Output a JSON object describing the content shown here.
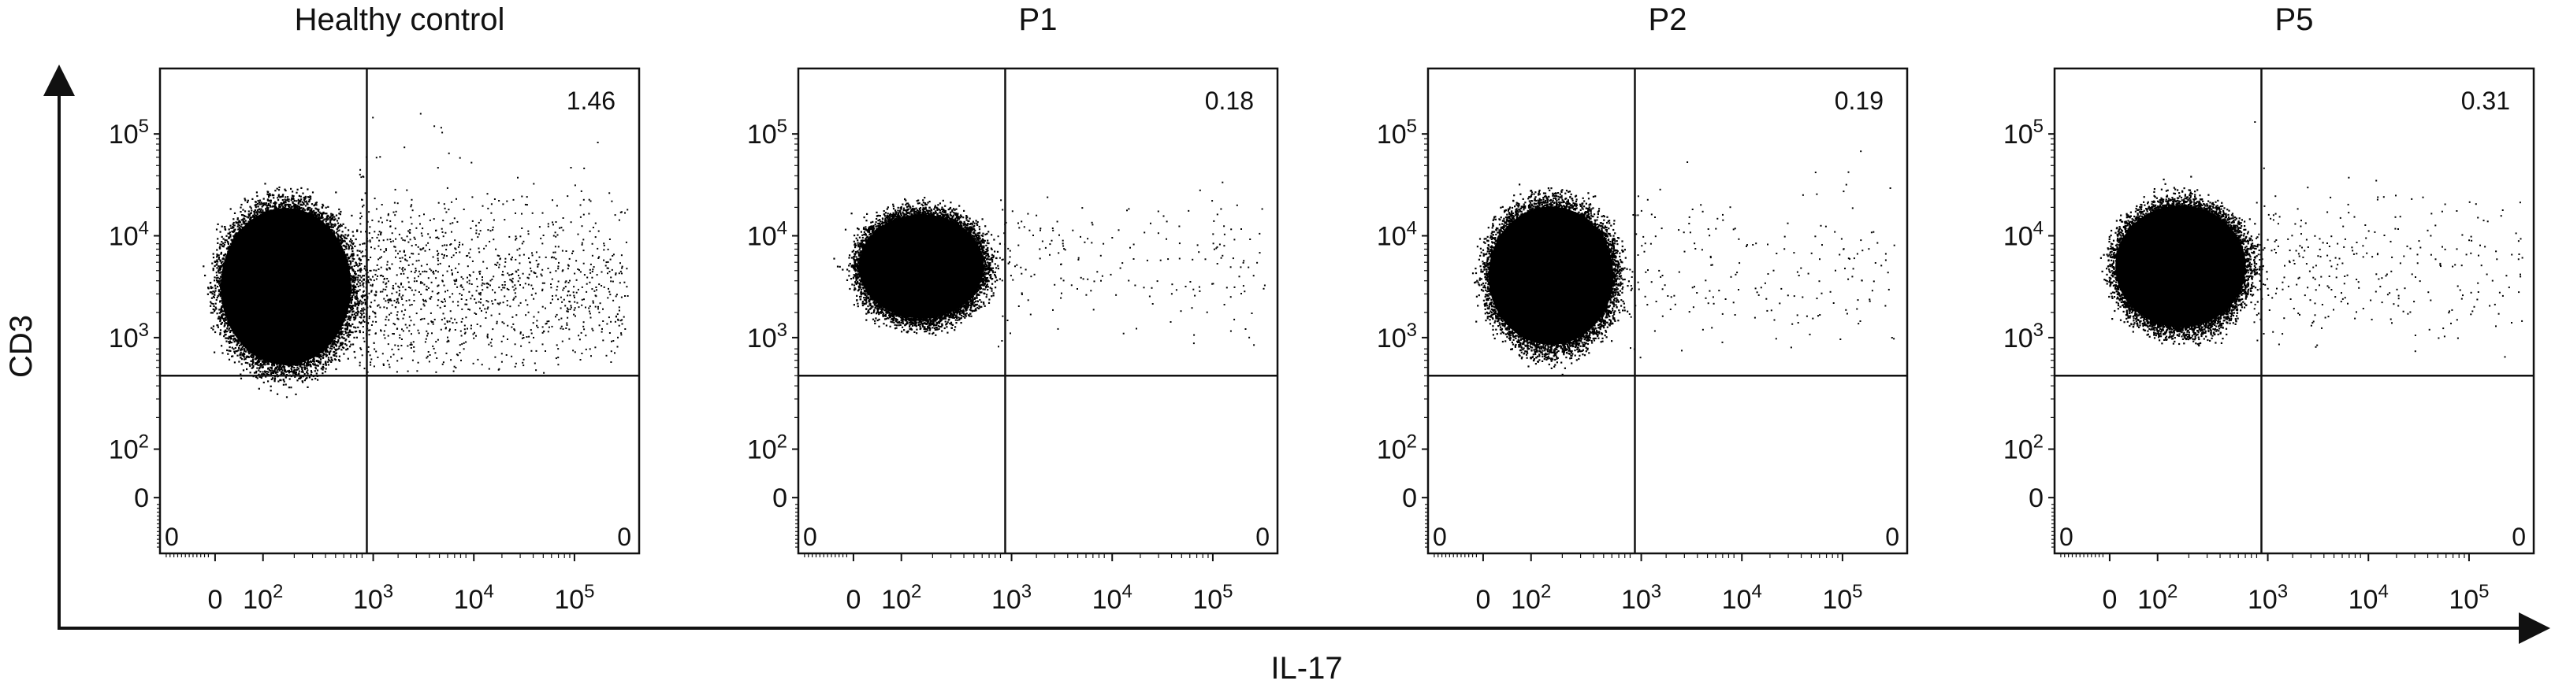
{
  "figure": {
    "x_axis_label": "IL-17",
    "y_axis_label": "CD3"
  },
  "chart_data": [
    {
      "type": "scatter",
      "title": "Healthy control",
      "xlabel": "IL-17",
      "ylabel": "CD3",
      "x_scale": "biexponential",
      "y_scale": "biexponential",
      "x_ticks": [
        "0",
        "10^2",
        "10^3",
        "10^4",
        "10^5"
      ],
      "y_ticks": [
        "0",
        "10^2",
        "10^3",
        "10^4",
        "10^5"
      ],
      "gate": {
        "x": 1000,
        "y": 500
      },
      "quadrants": {
        "upper_left": "",
        "upper_right": "1.46",
        "lower_left": "0",
        "lower_right": "0"
      },
      "population": {
        "main_x": [
          1,
          800
        ],
        "main_y": [
          500,
          25000
        ],
        "shape": "round",
        "positive_density": 1.46
      }
    },
    {
      "type": "scatter",
      "title": "P1",
      "xlabel": "IL-17",
      "ylabel": "CD3",
      "x_scale": "biexponential",
      "y_scale": "biexponential",
      "x_ticks": [
        "0",
        "10^2",
        "10^3",
        "10^4",
        "10^5"
      ],
      "y_ticks": [
        "0",
        "10^2",
        "10^3",
        "10^4",
        "10^5"
      ],
      "gate": {
        "x": 1000,
        "y": 500
      },
      "quadrants": {
        "upper_left": "",
        "upper_right": "0.18",
        "lower_left": "0",
        "lower_right": "0"
      },
      "population": {
        "main_x": [
          1,
          700
        ],
        "main_y": [
          1500,
          20000
        ],
        "shape": "flat",
        "positive_density": 0.18
      }
    },
    {
      "type": "scatter",
      "title": "P2",
      "xlabel": "IL-17",
      "ylabel": "CD3",
      "x_scale": "biexponential",
      "y_scale": "biexponential",
      "x_ticks": [
        "0",
        "10^2",
        "10^3",
        "10^4",
        "10^5"
      ],
      "y_ticks": [
        "0",
        "10^2",
        "10^3",
        "10^4",
        "10^5"
      ],
      "gate": {
        "x": 1000,
        "y": 500
      },
      "quadrants": {
        "upper_left": "",
        "upper_right": "0.19",
        "lower_left": "0",
        "lower_right": "0"
      },
      "population": {
        "main_x": [
          1,
          700
        ],
        "main_y": [
          800,
          25000
        ],
        "shape": "round",
        "positive_density": 0.19
      }
    },
    {
      "type": "scatter",
      "title": "P5",
      "xlabel": "IL-17",
      "ylabel": "CD3",
      "x_scale": "biexponential",
      "y_scale": "biexponential",
      "x_ticks": [
        "0",
        "10^2",
        "10^3",
        "10^4",
        "10^5"
      ],
      "y_ticks": [
        "0",
        "10^2",
        "10^3",
        "10^4",
        "10^5"
      ],
      "gate": {
        "x": 1000,
        "y": 500
      },
      "quadrants": {
        "upper_left": "",
        "upper_right": "0.31",
        "lower_left": "0",
        "lower_right": "0"
      },
      "population": {
        "main_x": [
          1,
          800
        ],
        "main_y": [
          1200,
          25000
        ],
        "shape": "flat",
        "positive_density": 0.31
      }
    }
  ]
}
